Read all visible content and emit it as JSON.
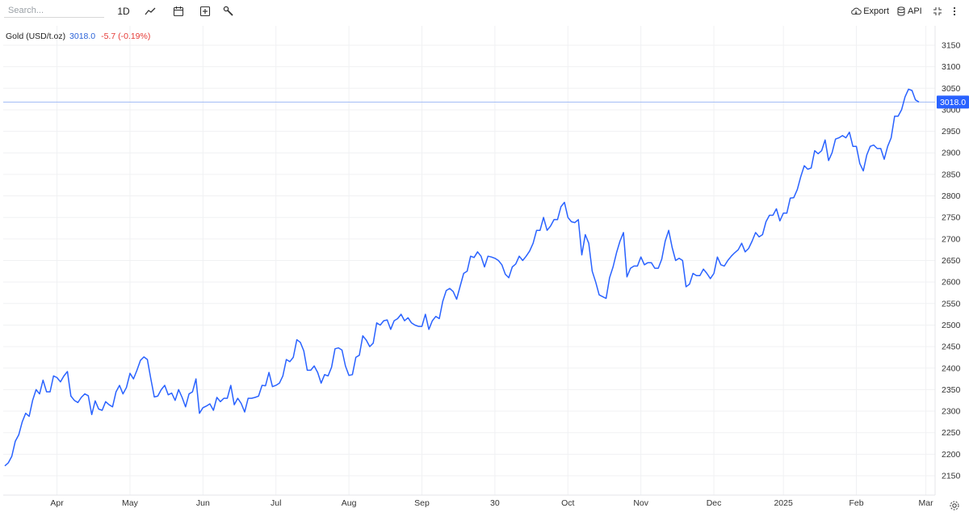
{
  "toolbar": {
    "search_placeholder": "Search...",
    "interval_label": "1D",
    "icons": [
      "line-chart-icon",
      "calendar-icon",
      "add-indicator-icon",
      "wrench-icon"
    ],
    "export_label": "Export",
    "api_label": "API",
    "fullscreen_icon": "collapse-icon",
    "menu_icon": "more-vertical-icon"
  },
  "legend": {
    "name": "Gold (USD/t.oz)",
    "last": "3018.0",
    "change": "-5.7 (-0.19%)"
  },
  "colors": {
    "line": "#2962ff",
    "last_price_line": "#9fbaf5",
    "badge": "#2962ff",
    "negative": "#e53935",
    "grid": "#f0f1f3"
  },
  "settings_icon": "gear-icon",
  "chart_data": {
    "type": "line",
    "series": [
      {
        "name": "Gold (USD/t.oz)",
        "x_start": "2024-03-15",
        "frequency": "trading days",
        "values": [
          2173,
          2180,
          2195,
          2230,
          2245,
          2275,
          2295,
          2288,
          2325,
          2350,
          2340,
          2372,
          2345,
          2345,
          2382,
          2378,
          2368,
          2382,
          2392,
          2335,
          2325,
          2320,
          2332,
          2340,
          2336,
          2292,
          2324,
          2305,
          2302,
          2322,
          2315,
          2310,
          2345,
          2360,
          2340,
          2355,
          2388,
          2375,
          2395,
          2418,
          2426,
          2420,
          2375,
          2333,
          2335,
          2350,
          2360,
          2338,
          2342,
          2325,
          2350,
          2332,
          2310,
          2340,
          2345,
          2375,
          2295,
          2308,
          2312,
          2317,
          2302,
          2332,
          2322,
          2330,
          2330,
          2360,
          2315,
          2330,
          2318,
          2298,
          2330,
          2330,
          2332,
          2335,
          2360,
          2359,
          2390,
          2357,
          2360,
          2365,
          2382,
          2420,
          2415,
          2425,
          2466,
          2460,
          2440,
          2395,
          2395,
          2405,
          2390,
          2365,
          2385,
          2382,
          2402,
          2445,
          2447,
          2442,
          2405,
          2383,
          2385,
          2425,
          2430,
          2475,
          2465,
          2450,
          2458,
          2505,
          2500,
          2510,
          2512,
          2490,
          2510,
          2515,
          2525,
          2510,
          2517,
          2505,
          2500,
          2497,
          2497,
          2525,
          2490,
          2510,
          2520,
          2515,
          2555,
          2580,
          2585,
          2578,
          2560,
          2590,
          2620,
          2625,
          2660,
          2657,
          2670,
          2660,
          2635,
          2660,
          2658,
          2655,
          2650,
          2640,
          2618,
          2610,
          2635,
          2642,
          2660,
          2650,
          2660,
          2672,
          2690,
          2720,
          2720,
          2750,
          2720,
          2730,
          2745,
          2745,
          2775,
          2785,
          2750,
          2740,
          2738,
          2745,
          2663,
          2710,
          2690,
          2625,
          2600,
          2570,
          2566,
          2562,
          2610,
          2635,
          2668,
          2695,
          2715,
          2612,
          2632,
          2637,
          2637,
          2658,
          2640,
          2645,
          2645,
          2632,
          2632,
          2653,
          2695,
          2720,
          2680,
          2650,
          2655,
          2650,
          2589,
          2595,
          2620,
          2615,
          2615,
          2630,
          2620,
          2608,
          2620,
          2658,
          2640,
          2637,
          2650,
          2660,
          2668,
          2675,
          2690,
          2670,
          2678,
          2695,
          2715,
          2705,
          2710,
          2740,
          2755,
          2755,
          2770,
          2742,
          2760,
          2760,
          2795,
          2796,
          2815,
          2845,
          2870,
          2862,
          2865,
          2905,
          2898,
          2905,
          2930,
          2882,
          2900,
          2932,
          2935,
          2940,
          2935,
          2948,
          2915,
          2915,
          2875,
          2858,
          2895,
          2915,
          2918,
          2910,
          2910,
          2885,
          2915,
          2935,
          2985,
          2985,
          3000,
          3030,
          3048,
          3045,
          3023,
          3018
        ]
      }
    ],
    "x_tick_labels": [
      "Apr",
      "May",
      "Jun",
      "Jul",
      "Aug",
      "Sep",
      "30",
      "Oct",
      "Nov",
      "Dec",
      "2025",
      "Feb",
      "Mar"
    ],
    "y_tick_labels": [
      2150,
      2200,
      2250,
      2300,
      2350,
      2400,
      2450,
      2500,
      2550,
      2600,
      2650,
      2700,
      2750,
      2800,
      2850,
      2900,
      2950,
      3000,
      3050,
      3100,
      3150
    ],
    "ylim": [
      2105,
      3195
    ],
    "last_value": 3018.0,
    "last_value_label": "3018.0",
    "grid": true,
    "legend_position": "top-left",
    "title": "",
    "xlabel": "",
    "ylabel": ""
  }
}
